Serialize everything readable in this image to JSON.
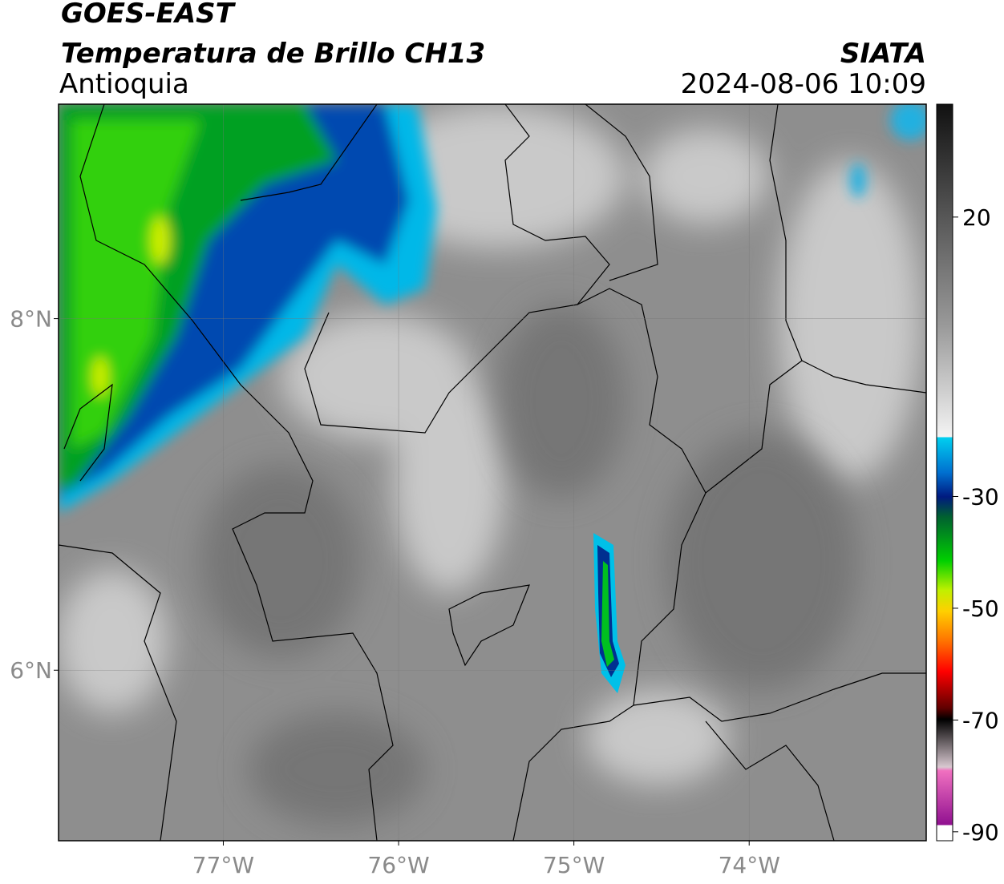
{
  "header": {
    "satellite": "GOES-EAST",
    "product": "Temperatura de Brillo CH13",
    "region": "Antioquia",
    "source": "SIATA",
    "datetime": "2024-08-06 10:09"
  },
  "map": {
    "xlim": [
      -77.94,
      -72.99
    ],
    "ylim": [
      5.03,
      9.22
    ],
    "lon_ticks": [
      {
        "value": -77,
        "label": "77°W"
      },
      {
        "value": -76,
        "label": "76°W"
      },
      {
        "value": -75,
        "label": "75°W"
      },
      {
        "value": -74,
        "label": "74°W"
      }
    ],
    "lat_ticks": [
      {
        "value": 8,
        "label": "8°N"
      },
      {
        "value": 6,
        "label": "6°N"
      }
    ],
    "grid": true
  },
  "colorbar": {
    "lim": [
      -91.6,
      40.2
    ],
    "ticks": [
      20,
      -30,
      -50,
      -70,
      -90
    ]
  }
}
